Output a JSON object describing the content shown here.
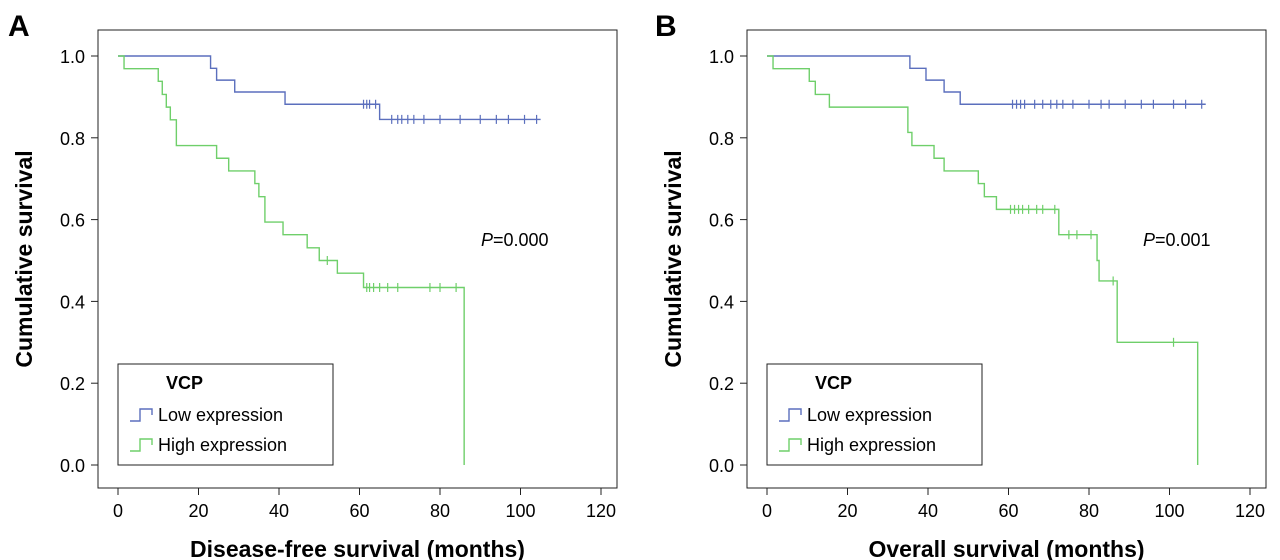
{
  "chart_data": [
    {
      "panel_label": "A",
      "type": "line",
      "subtype": "kaplan-meier step",
      "xlabel": "Disease-free survival (months)",
      "ylabel": "Cumulative survival",
      "xlim": [
        0,
        120
      ],
      "ylim": [
        0,
        1.0
      ],
      "xticks": [
        0,
        20,
        40,
        60,
        80,
        100,
        120
      ],
      "yticks": [
        0.0,
        0.2,
        0.4,
        0.6,
        0.8,
        1.0
      ],
      "grid": false,
      "annotation": {
        "italic": "P",
        "rest": "=0.000"
      },
      "legend": {
        "title": "VCP",
        "placement": "bottom-left"
      },
      "series": [
        {
          "name": "Low expression",
          "color": "#5b6fbd",
          "steps": [
            [
              0,
              1.0
            ],
            [
              23,
              0.97
            ],
            [
              24.5,
              0.941
            ],
            [
              29,
              0.912
            ],
            [
              41.5,
              0.882
            ],
            [
              65,
              0.845
            ],
            [
              105,
              0.845
            ]
          ],
          "censored": [
            [
              61,
              0.882
            ],
            [
              61.8,
              0.882
            ],
            [
              62.5,
              0.882
            ],
            [
              64,
              0.882
            ],
            [
              68,
              0.845
            ],
            [
              69.5,
              0.845
            ],
            [
              70.5,
              0.845
            ],
            [
              72,
              0.845
            ],
            [
              73.5,
              0.845
            ],
            [
              76,
              0.845
            ],
            [
              80,
              0.845
            ],
            [
              85,
              0.845
            ],
            [
              90,
              0.845
            ],
            [
              94,
              0.845
            ],
            [
              97,
              0.845
            ],
            [
              101,
              0.845
            ],
            [
              104,
              0.845
            ]
          ]
        },
        {
          "name": "High expression",
          "color": "#6fcf6a",
          "steps": [
            [
              0,
              1.0
            ],
            [
              1.5,
              0.969
            ],
            [
              10,
              0.938
            ],
            [
              11,
              0.906
            ],
            [
              12,
              0.875
            ],
            [
              13,
              0.844
            ],
            [
              14.5,
              0.781
            ],
            [
              24.5,
              0.75
            ],
            [
              27.5,
              0.719
            ],
            [
              34,
              0.688
            ],
            [
              35,
              0.656
            ],
            [
              36.5,
              0.594
            ],
            [
              41,
              0.563
            ],
            [
              47,
              0.531
            ],
            [
              50,
              0.5
            ],
            [
              54.5,
              0.469
            ],
            [
              61,
              0.434
            ],
            [
              86,
              0.0
            ]
          ],
          "censored": [
            [
              52,
              0.5
            ],
            [
              61.8,
              0.434
            ],
            [
              62.5,
              0.434
            ],
            [
              63.5,
              0.434
            ],
            [
              65,
              0.434
            ],
            [
              67,
              0.434
            ],
            [
              69.5,
              0.434
            ],
            [
              77.5,
              0.434
            ],
            [
              80,
              0.434
            ],
            [
              84,
              0.434
            ]
          ]
        }
      ]
    },
    {
      "panel_label": "B",
      "type": "line",
      "subtype": "kaplan-meier step",
      "xlabel": "Overall survival (months)",
      "ylabel": "Cumulative survival",
      "xlim": [
        0,
        120
      ],
      "ylim": [
        0,
        1.0
      ],
      "xticks": [
        0,
        20,
        40,
        60,
        80,
        100,
        120
      ],
      "yticks": [
        0.0,
        0.2,
        0.4,
        0.6,
        0.8,
        1.0
      ],
      "grid": false,
      "annotation": {
        "italic": "P",
        "rest": "=0.001"
      },
      "legend": {
        "title": "VCP",
        "placement": "bottom-left"
      },
      "series": [
        {
          "name": "Low expression",
          "color": "#5b6fbd",
          "steps": [
            [
              0,
              1.0
            ],
            [
              35.5,
              0.97
            ],
            [
              39.5,
              0.941
            ],
            [
              44,
              0.912
            ],
            [
              48,
              0.882
            ],
            [
              109,
              0.882
            ]
          ],
          "censored": [
            [
              61,
              0.882
            ],
            [
              62,
              0.882
            ],
            [
              63,
              0.882
            ],
            [
              64,
              0.882
            ],
            [
              66.5,
              0.882
            ],
            [
              68.5,
              0.882
            ],
            [
              70.5,
              0.882
            ],
            [
              72,
              0.882
            ],
            [
              73.5,
              0.882
            ],
            [
              76,
              0.882
            ],
            [
              80,
              0.882
            ],
            [
              83,
              0.882
            ],
            [
              85,
              0.882
            ],
            [
              89,
              0.882
            ],
            [
              93,
              0.882
            ],
            [
              96,
              0.882
            ],
            [
              101,
              0.882
            ],
            [
              104,
              0.882
            ],
            [
              108,
              0.882
            ]
          ]
        },
        {
          "name": "High expression",
          "color": "#6fcf6a",
          "steps": [
            [
              0,
              1.0
            ],
            [
              1.5,
              0.969
            ],
            [
              10.5,
              0.938
            ],
            [
              12,
              0.906
            ],
            [
              15.5,
              0.875
            ],
            [
              35,
              0.813
            ],
            [
              36,
              0.781
            ],
            [
              41.5,
              0.75
            ],
            [
              44,
              0.719
            ],
            [
              52.5,
              0.688
            ],
            [
              54,
              0.656
            ],
            [
              57,
              0.625
            ],
            [
              72.5,
              0.563
            ],
            [
              82,
              0.5
            ],
            [
              82.5,
              0.45
            ],
            [
              87,
              0.3
            ],
            [
              107,
              0.0
            ]
          ],
          "censored": [
            [
              60.5,
              0.625
            ],
            [
              61.5,
              0.625
            ],
            [
              62.5,
              0.625
            ],
            [
              63.5,
              0.625
            ],
            [
              65,
              0.625
            ],
            [
              67,
              0.625
            ],
            [
              68.5,
              0.625
            ],
            [
              71.5,
              0.625
            ],
            [
              75,
              0.563
            ],
            [
              77,
              0.563
            ],
            [
              80.5,
              0.563
            ],
            [
              86,
              0.45
            ],
            [
              101,
              0.3
            ]
          ]
        }
      ]
    }
  ]
}
